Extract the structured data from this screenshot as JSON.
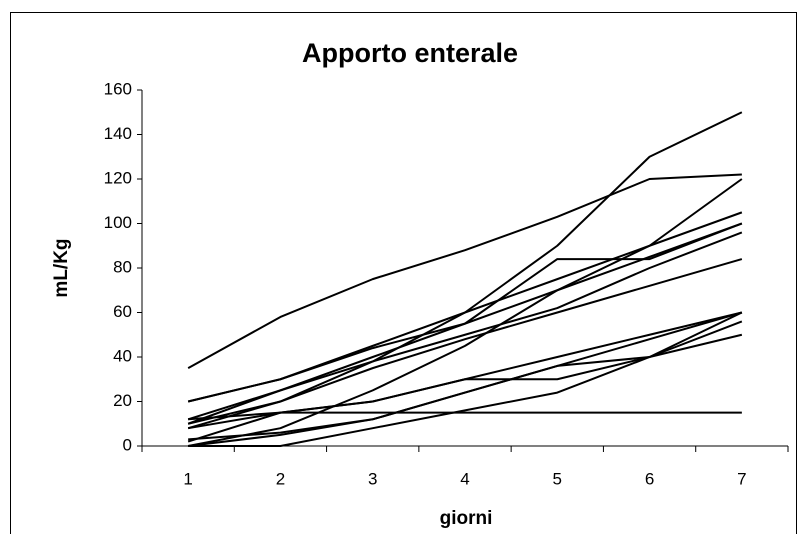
{
  "chart_data": {
    "type": "line",
    "title": "Apporto enterale",
    "x_label": "giorni",
    "y_label": "mL/Kg",
    "categories": [
      "1",
      "2",
      "3",
      "4",
      "5",
      "6",
      "7"
    ],
    "color": "#000000",
    "grid": false,
    "ylim": [
      0,
      160
    ],
    "yticks": [
      0,
      20,
      40,
      60,
      80,
      100,
      120,
      140,
      160
    ],
    "series": [
      {
        "color": "#000000",
        "values": [
          35,
          58,
          75,
          88,
          103,
          120,
          122
        ]
      },
      {
        "color": "#000000",
        "values": [
          8,
          20,
          38,
          60,
          90,
          130,
          150
        ]
      },
      {
        "color": "#000000",
        "values": [
          0,
          8,
          25,
          45,
          70,
          90,
          120
        ]
      },
      {
        "color": "#000000",
        "values": [
          10,
          25,
          40,
          55,
          84,
          84,
          100
        ]
      },
      {
        "color": "#000000",
        "values": [
          20,
          30,
          45,
          60,
          75,
          90,
          105
        ]
      },
      {
        "color": "#000000",
        "values": [
          12,
          25,
          38,
          50,
          62,
          80,
          96
        ]
      },
      {
        "color": "#000000",
        "values": [
          10,
          20,
          35,
          48,
          60,
          72,
          84
        ]
      },
      {
        "color": "#000000",
        "values": [
          20,
          30,
          44,
          55,
          70,
          85,
          100
        ]
      },
      {
        "color": "#000000",
        "values": [
          12,
          15,
          20,
          30,
          40,
          50,
          60
        ]
      },
      {
        "color": "#000000",
        "values": [
          8,
          15,
          20,
          30,
          30,
          40,
          60
        ]
      },
      {
        "color": "#000000",
        "values": [
          0,
          5,
          12,
          24,
          36,
          40,
          56
        ]
      },
      {
        "color": "#000000",
        "values": [
          3,
          6,
          12,
          24,
          36,
          48,
          60
        ]
      },
      {
        "color": "#000000",
        "values": [
          2,
          15,
          15,
          15,
          15,
          15,
          15
        ]
      },
      {
        "color": "#000000",
        "values": [
          0,
          0,
          8,
          16,
          24,
          40,
          50
        ]
      }
    ]
  }
}
